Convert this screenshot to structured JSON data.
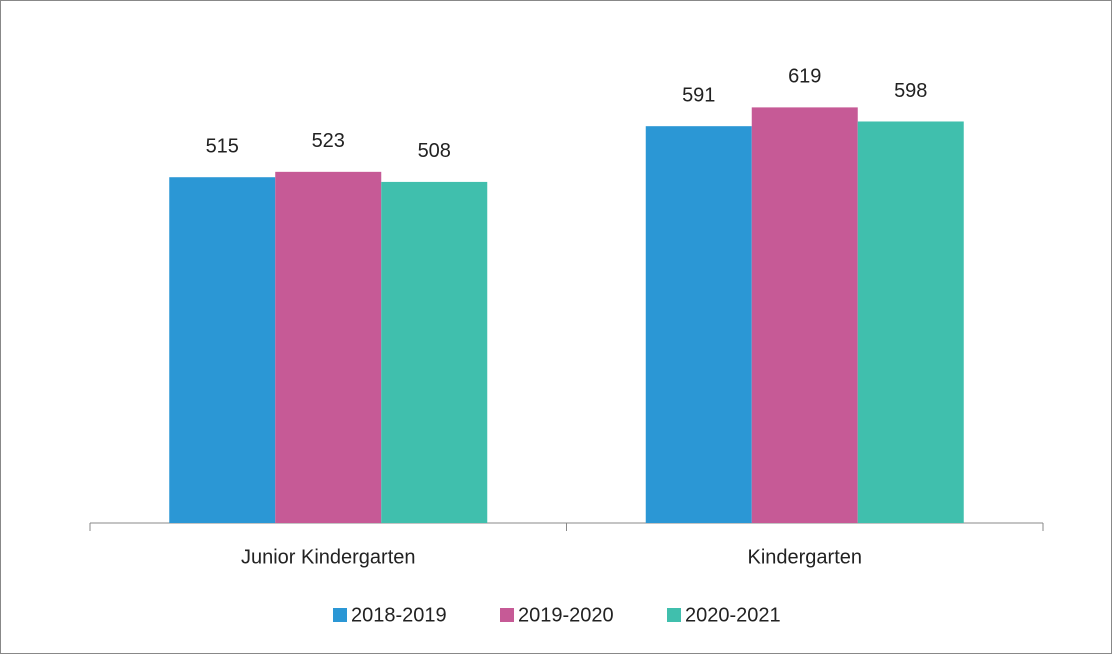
{
  "chart_data": {
    "type": "bar",
    "categories": [
      "Junior Kindergarten",
      "Kindergarten"
    ],
    "series": [
      {
        "name": "2018-2019",
        "color": "#2b97d5",
        "values": [
          515,
          591
        ]
      },
      {
        "name": "2019-2020",
        "color": "#c65a96",
        "values": [
          523,
          619
        ]
      },
      {
        "name": "2020-2021",
        "color": "#40bfad",
        "values": [
          508,
          598
        ]
      }
    ],
    "ylim": [
      0,
      700
    ]
  }
}
